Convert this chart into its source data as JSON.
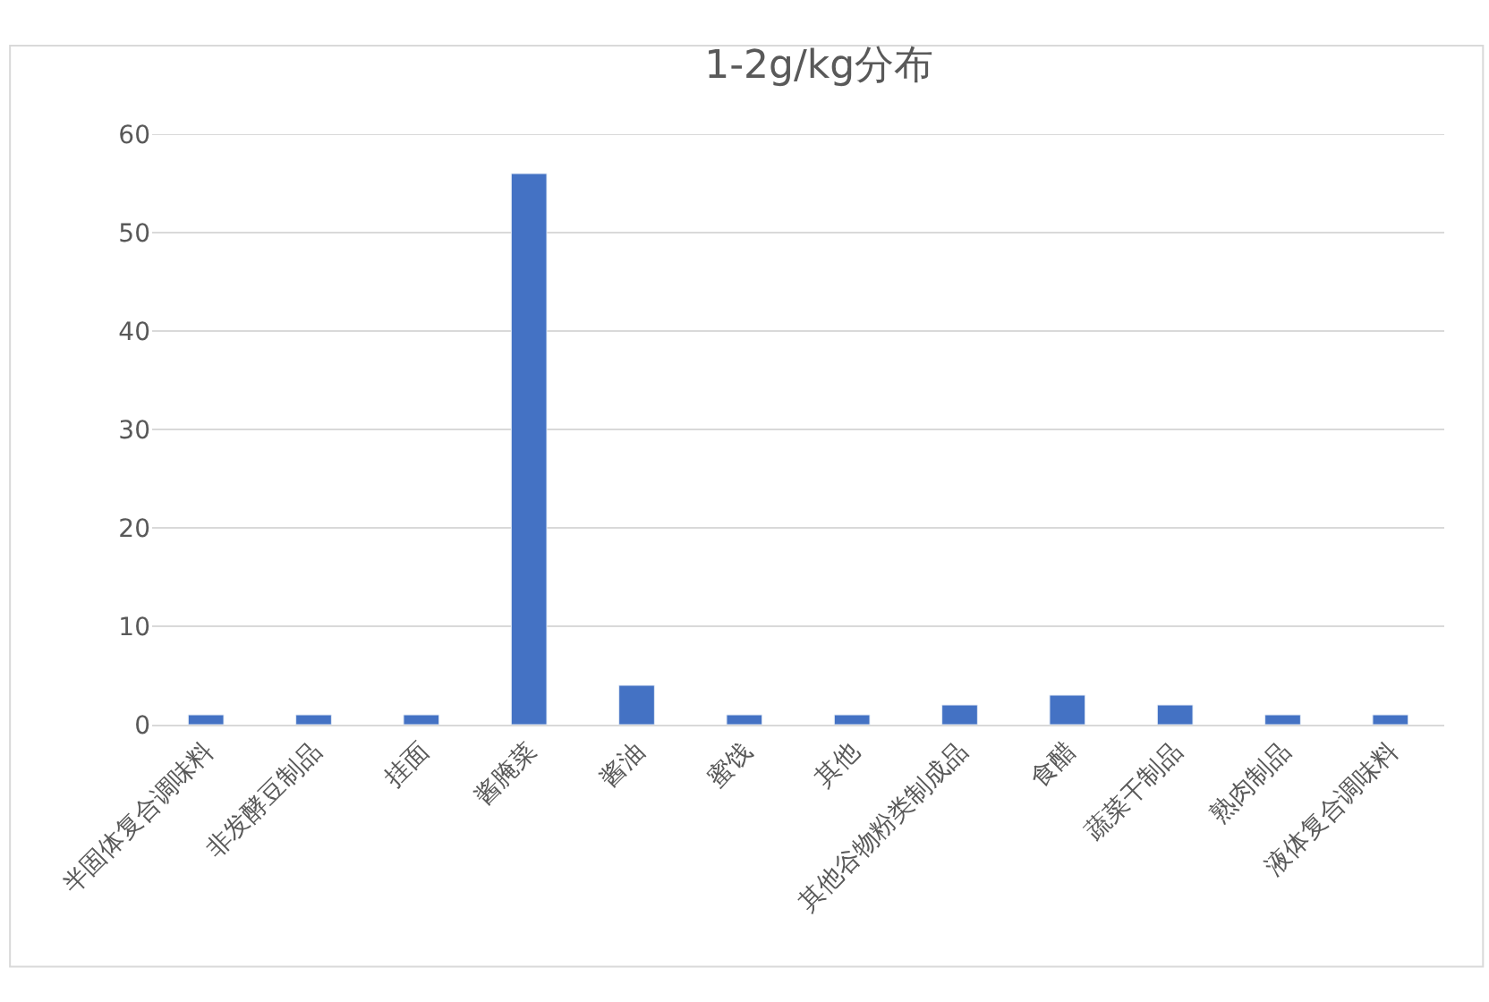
{
  "chart_data": {
    "type": "bar",
    "title": "1-2g/kg分布",
    "categories": [
      "半固体复合调味料",
      "非发酵豆制品",
      "挂面",
      "酱腌菜",
      "酱油",
      "蜜饯",
      "其他",
      "其他谷物粉类制成品",
      "食醋",
      "蔬菜干制品",
      "熟肉制品",
      "液体复合调味料"
    ],
    "values": [
      1,
      1,
      1,
      56,
      4,
      1,
      1,
      2,
      3,
      2,
      1,
      1
    ],
    "color": "#4472c4",
    "ylim": [
      0,
      60
    ],
    "yticks": [
      0,
      10,
      20,
      30,
      40,
      50,
      60
    ],
    "grid": "y"
  }
}
